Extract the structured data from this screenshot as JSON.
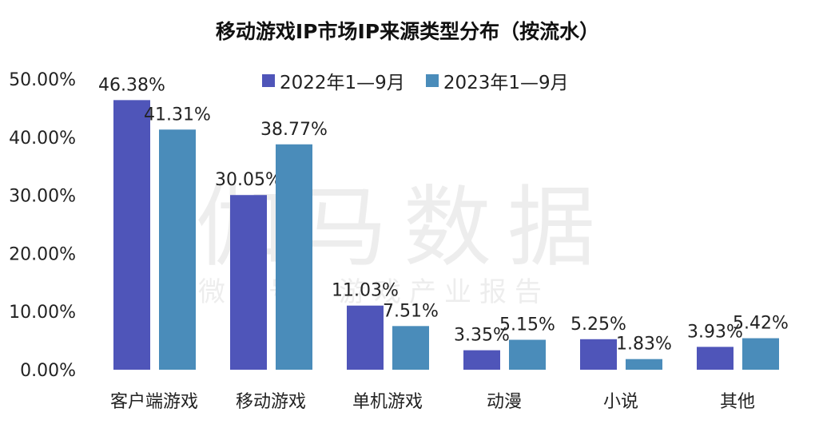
{
  "chart_data": {
    "type": "bar",
    "title": "移动游戏IP市场IP来源类型分布（按流水）",
    "categories": [
      "客户端游戏",
      "移动游戏",
      "单机游戏",
      "动漫",
      "小说",
      "其他"
    ],
    "series": [
      {
        "name": "2022年1—9月",
        "values": [
          46.38,
          30.05,
          11.03,
          3.35,
          5.25,
          3.93
        ],
        "labels": [
          "46.38%",
          "30.05%",
          "11.03%",
          "3.35%",
          "5.25%",
          "3.93%"
        ],
        "color": "#4f55b9"
      },
      {
        "name": "2023年1—9月",
        "values": [
          41.31,
          38.77,
          7.51,
          5.15,
          1.83,
          5.42
        ],
        "labels": [
          "41.31%",
          "38.77%",
          "7.51%",
          "5.15%",
          "1.83%",
          "5.42%"
        ],
        "color": "#4a8cba"
      }
    ],
    "yticks": [
      "0.00%",
      "10.00%",
      "20.00%",
      "30.00%",
      "40.00%",
      "50.00%"
    ],
    "ylim": [
      0,
      50
    ],
    "grid": false,
    "legend": "top"
  },
  "watermark": {
    "main": "伽马数据",
    "sub": "微信号：游戏产业报告"
  }
}
